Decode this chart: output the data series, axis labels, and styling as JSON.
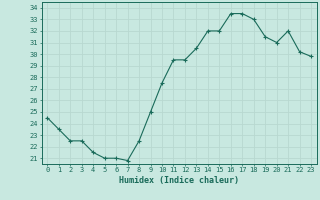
{
  "x": [
    0,
    1,
    2,
    3,
    4,
    5,
    6,
    7,
    8,
    9,
    10,
    11,
    12,
    13,
    14,
    15,
    16,
    17,
    18,
    19,
    20,
    21,
    22,
    23
  ],
  "y": [
    24.5,
    23.5,
    22.5,
    22.5,
    21.5,
    21.0,
    21.0,
    20.8,
    22.5,
    25.0,
    27.5,
    29.5,
    29.5,
    30.5,
    32.0,
    32.0,
    33.5,
    33.5,
    33.0,
    31.5,
    31.0,
    32.0,
    30.2,
    29.8
  ],
  "line_color": "#1a6b5a",
  "marker": "+",
  "bg_color": "#c8e8e0",
  "grid_color": "#b8d8d0",
  "xlabel": "Humidex (Indice chaleur)",
  "xlim": [
    -0.5,
    23.5
  ],
  "ylim": [
    20.5,
    34.5
  ],
  "yticks": [
    21,
    22,
    23,
    24,
    25,
    26,
    27,
    28,
    29,
    30,
    31,
    32,
    33,
    34
  ],
  "xticks": [
    0,
    1,
    2,
    3,
    4,
    5,
    6,
    7,
    8,
    9,
    10,
    11,
    12,
    13,
    14,
    15,
    16,
    17,
    18,
    19,
    20,
    21,
    22,
    23
  ],
  "tick_color": "#1a6b5a",
  "label_color": "#1a6b5a",
  "font_family": "monospace",
  "tick_fontsize": 5.0,
  "xlabel_fontsize": 6.0
}
